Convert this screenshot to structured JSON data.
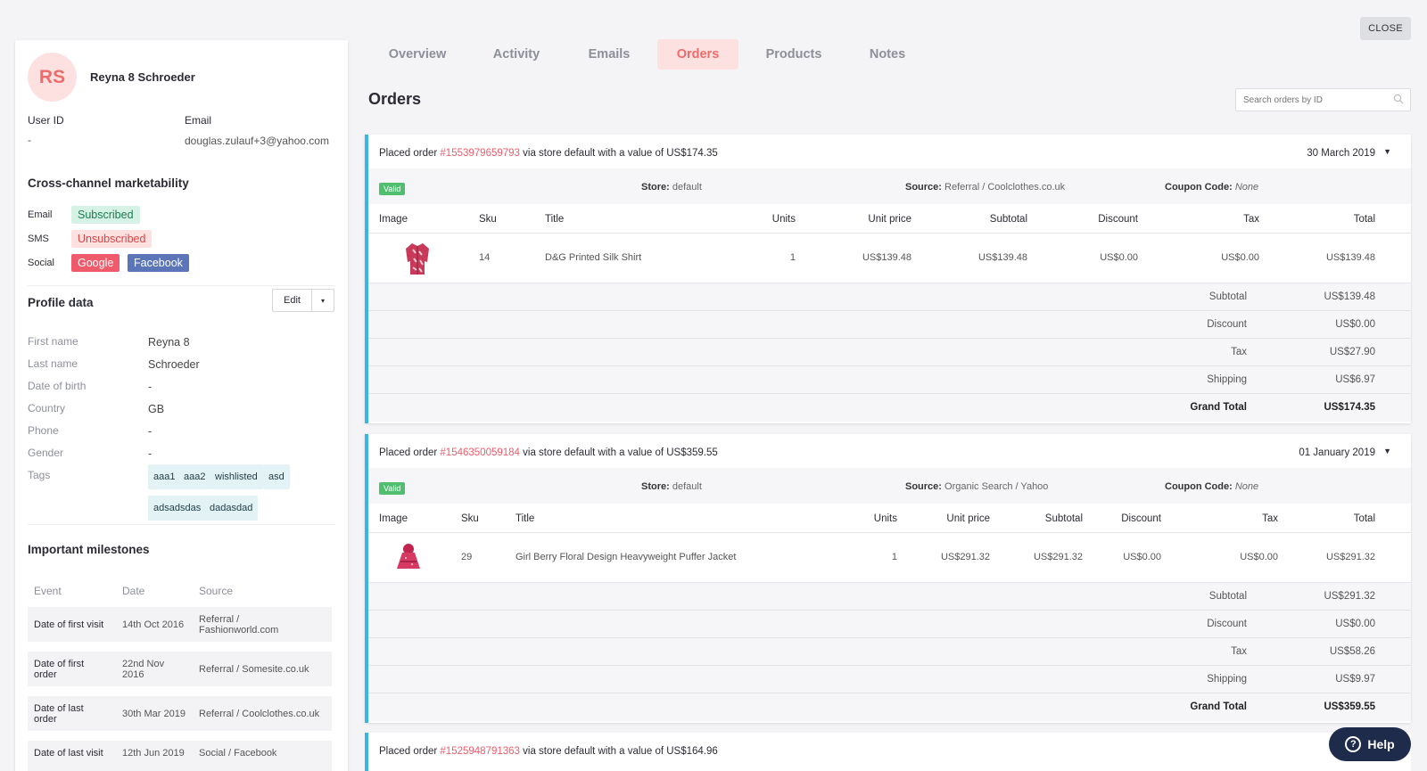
{
  "close_label": "CLOSE",
  "profile": {
    "initials": "RS",
    "name": "Reyna 8 Schroeder",
    "user_id_label": "User ID",
    "user_id_value": "-",
    "email_label": "Email",
    "email_value": "douglas.zulauf+3@yahoo.com"
  },
  "marketability": {
    "title": "Cross-channel marketability",
    "email_label": "Email",
    "email_status": "Subscribed",
    "sms_label": "SMS",
    "sms_status": "Unsubscribed",
    "social_label": "Social",
    "social_1": "Google",
    "social_2": "Facebook"
  },
  "profile_data": {
    "title": "Profile data",
    "edit_label": "Edit",
    "fields": [
      {
        "label": "First name",
        "value": "Reyna 8"
      },
      {
        "label": "Last name",
        "value": "Schroeder"
      },
      {
        "label": "Date of birth",
        "value": "-"
      },
      {
        "label": "Country",
        "value": "GB"
      },
      {
        "label": "Phone",
        "value": "-"
      },
      {
        "label": "Gender",
        "value": "-"
      }
    ],
    "tags_label": "Tags",
    "tags": [
      "aaa1",
      "aaa2",
      "wishlisted",
      "asd",
      "adsadsdas",
      "dadasdad"
    ]
  },
  "milestones": {
    "title": "Important milestones",
    "headers": [
      "Event",
      "Date",
      "Source"
    ],
    "rows": [
      {
        "event": "Date of first visit",
        "date": "14th Oct 2016",
        "source": "Referral / Fashionworld.com"
      },
      {
        "event": "Date of first order",
        "date": "22nd Nov 2016",
        "source": "Referral / Somesite.co.uk"
      },
      {
        "event": "Date of last order",
        "date": "30th Mar 2019",
        "source": "Referral / Coolclothes.co.uk"
      },
      {
        "event": "Date of last visit",
        "date": "12th Jun 2019",
        "source": "Social / Facebook"
      }
    ]
  },
  "tabs": [
    "Overview",
    "Activity",
    "Emails",
    "Orders",
    "Products",
    "Notes"
  ],
  "orders_title": "Orders",
  "search_placeholder": "Search orders by ID",
  "table_headers": [
    "Image",
    "Sku",
    "Title",
    "Units",
    "Unit price",
    "Subtotal",
    "Discount",
    "Tax",
    "Total"
  ],
  "summary_labels": [
    "Subtotal",
    "Discount",
    "Tax",
    "Shipping",
    "Grand Total"
  ],
  "orders": [
    {
      "prefix": "Placed order ",
      "id": "#1553979659793",
      "suffix": " via store default with a value of US$174.35",
      "date": "30 March 2019",
      "status": "Valid",
      "store_label": "Store:",
      "store": "default",
      "source_label": "Source:",
      "source": "Referral / Coolclothes.co.uk",
      "coupon_label": "Coupon Code:",
      "coupon": "None",
      "item": {
        "sku": "14",
        "title": "D&G Printed Silk Shirt",
        "units": "1",
        "unit_price": "US$139.48",
        "subtotal": "US$139.48",
        "discount": "US$0.00",
        "tax": "US$0.00",
        "total": "US$139.48"
      },
      "summary": [
        "US$139.48",
        "US$0.00",
        "US$27.90",
        "US$6.97",
        "US$174.35"
      ]
    },
    {
      "prefix": "Placed order ",
      "id": "#1546350059184",
      "suffix": " via store default with a value of US$359.55",
      "date": "01 January 2019",
      "status": "Valid",
      "store_label": "Store:",
      "store": "default",
      "source_label": "Source:",
      "source": "Organic Search / Yahoo",
      "coupon_label": "Coupon Code:",
      "coupon": "None",
      "item": {
        "sku": "29",
        "title": "Girl Berry Floral Design Heavyweight Puffer Jacket",
        "units": "1",
        "unit_price": "US$291.32",
        "subtotal": "US$291.32",
        "discount": "US$0.00",
        "tax": "US$0.00",
        "total": "US$291.32"
      },
      "summary": [
        "US$291.32",
        "US$0.00",
        "US$58.26",
        "US$9.97",
        "US$359.55"
      ]
    },
    {
      "prefix": "Placed order ",
      "id": "#1525948791363",
      "suffix": " via store default with a value of US$164.96"
    }
  ],
  "help_label": "Help"
}
